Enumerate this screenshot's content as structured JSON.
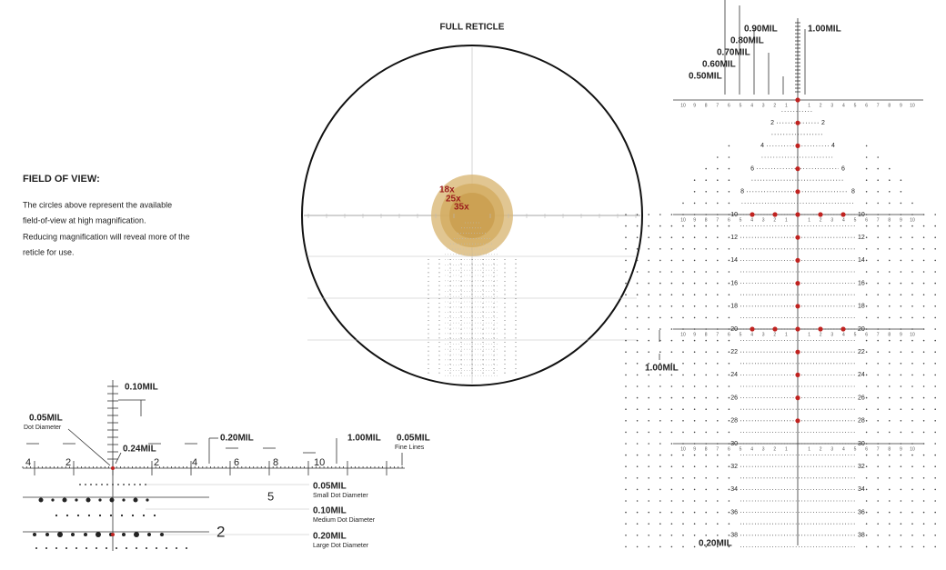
{
  "header": {
    "title": "FULL RETICLE"
  },
  "magnifications": [
    "18x",
    "25x",
    "35x"
  ],
  "field_of_view": {
    "title": "FIELD OF VIEW:",
    "lines": [
      "The circles above represent the available",
      "field-of-view at high magnification.",
      "Reducing magnification will reveal more of the",
      "reticle for use."
    ]
  },
  "detail": {
    "top_callout": "0.10MIL",
    "dot_callout": {
      "label": "0.05MIL",
      "sub": "Dot Diameter"
    },
    "gap_callout": "0.24MIL",
    "spacing_callout": "0.20MIL",
    "major_callout": "1.00MIL",
    "fine_callout": {
      "label": "0.05MIL",
      "sub": "Fine Lines"
    },
    "ruler_numbers": [
      4,
      2,
      2,
      4,
      6,
      8,
      10
    ],
    "stadia_numbers": [
      5,
      2
    ],
    "dot_rows": [
      {
        "label": "0.05MIL",
        "sub": "Small Dot Diameter"
      },
      {
        "label": "0.10MIL",
        "sub": "Medium Dot Diameter"
      },
      {
        "label": "0.20MIL",
        "sub": "Large Dot Diameter"
      }
    ]
  },
  "right_reticle": {
    "top_callouts": [
      "0.90MIL",
      "1.00MIL",
      "0.80MIL",
      "0.70MIL",
      "0.60MIL",
      "0.50MIL"
    ],
    "left_callout": "1.00MIL",
    "bottom_callout": "0.20MIL",
    "row_labels": [
      2,
      4,
      6,
      8,
      10,
      12,
      14,
      16,
      18,
      20,
      22,
      24,
      26,
      28,
      30,
      32,
      34,
      36,
      38
    ],
    "cross_scale": [
      10,
      9,
      8,
      7,
      6,
      5,
      4,
      3,
      2,
      1
    ]
  }
}
